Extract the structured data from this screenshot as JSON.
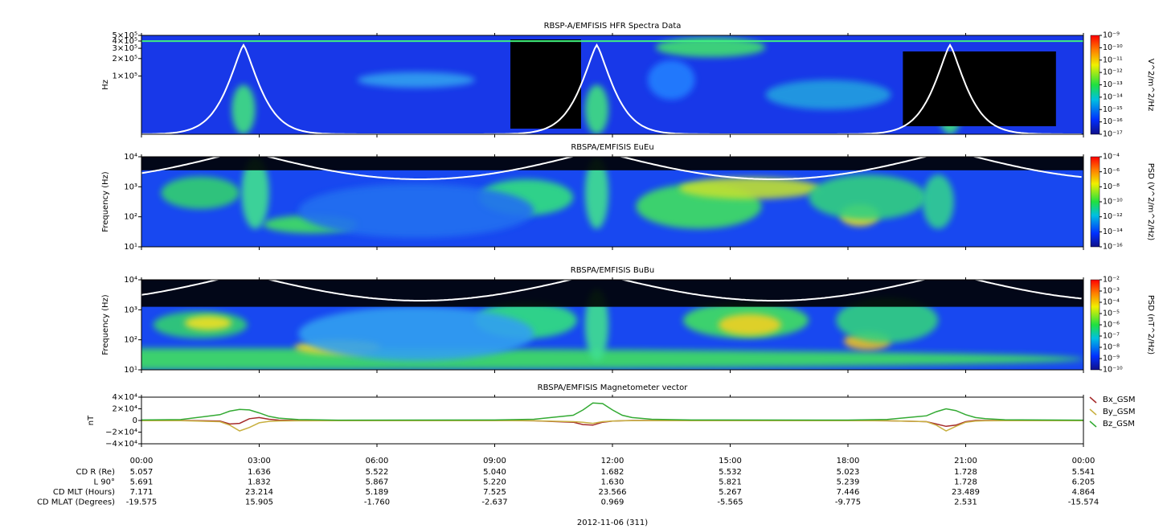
{
  "chart_data": [
    {
      "type": "spectrogram",
      "title": "RBSP-A/EMFISIS  HFR Spectra Data",
      "ylabel": "Hz",
      "ylog": true,
      "ylim": [
        10000,
        500000
      ],
      "yticks": [
        {
          "value": 500000,
          "label": "5×10⁵"
        },
        {
          "value": 400000,
          "label": "4×10⁵"
        },
        {
          "value": 300000,
          "label": "3×10⁵"
        },
        {
          "value": 200000,
          "label": "2×10⁵"
        },
        {
          "value": 100000,
          "label": "1×10⁵"
        }
      ],
      "xlim": [
        0,
        24
      ],
      "colorbar": {
        "label": "V^2/m^2/Hz",
        "log": true,
        "lim": [
          1e-17,
          1e-09
        ],
        "ticks": [
          {
            "value": 1e-09,
            "label": "10⁻⁹"
          },
          {
            "value": 1e-10,
            "label": "10⁻¹⁰"
          },
          {
            "value": 1e-11,
            "label": "10⁻¹¹"
          },
          {
            "value": 1e-12,
            "label": "10⁻¹²"
          },
          {
            "value": 1e-13,
            "label": "10⁻¹³"
          },
          {
            "value": 1e-14,
            "label": "10⁻¹⁴"
          },
          {
            "value": 1e-15,
            "label": "10⁻¹⁵"
          },
          {
            "value": 1e-16,
            "label": "10⁻¹⁶"
          },
          {
            "value": 1e-17,
            "label": "10⁻¹⁷"
          }
        ]
      }
    },
    {
      "type": "spectrogram",
      "title": "RBSPA/EMFISIS  EuEu",
      "ylabel": "Frequency (Hz)",
      "ylog": true,
      "ylim": [
        10,
        10000
      ],
      "yticks": [
        {
          "value": 10,
          "label": "10¹"
        },
        {
          "value": 100,
          "label": "10²"
        },
        {
          "value": 1000,
          "label": "10³"
        },
        {
          "value": 10000,
          "label": "10⁴"
        }
      ],
      "xlim": [
        0,
        24
      ],
      "colorbar": {
        "label": "PSD (V^2/m^2/Hz)",
        "log": true,
        "lim": [
          1e-16,
          0.0001
        ],
        "ticks": [
          {
            "value": 0.0001,
            "label": "10⁻⁴"
          },
          {
            "value": 1e-06,
            "label": "10⁻⁶"
          },
          {
            "value": 1e-08,
            "label": "10⁻⁸"
          },
          {
            "value": 1e-10,
            "label": "10⁻¹⁰"
          },
          {
            "value": 1e-12,
            "label": "10⁻¹²"
          },
          {
            "value": 1e-14,
            "label": "10⁻¹⁴"
          },
          {
            "value": 1e-16,
            "label": "10⁻¹⁶"
          }
        ]
      }
    },
    {
      "type": "spectrogram",
      "title": "RBSPA/EMFISIS  BuBu",
      "ylabel": "Frequency (Hz)",
      "ylog": true,
      "ylim": [
        10,
        10000
      ],
      "yticks": [
        {
          "value": 10,
          "label": "10¹"
        },
        {
          "value": 100,
          "label": "10²"
        },
        {
          "value": 1000,
          "label": "10³"
        },
        {
          "value": 10000,
          "label": "10⁴"
        }
      ],
      "xlim": [
        0,
        24
      ],
      "colorbar": {
        "label": "PSD (nT^2/Hz)",
        "log": true,
        "lim": [
          1e-10,
          0.01
        ],
        "ticks": [
          {
            "value": 0.01,
            "label": "10⁻²"
          },
          {
            "value": 0.001,
            "label": "10⁻³"
          },
          {
            "value": 0.0001,
            "label": "10⁻⁴"
          },
          {
            "value": 1e-05,
            "label": "10⁻⁵"
          },
          {
            "value": 1e-06,
            "label": "10⁻⁶"
          },
          {
            "value": 1e-07,
            "label": "10⁻⁷"
          },
          {
            "value": 1e-08,
            "label": "10⁻⁸"
          },
          {
            "value": 1e-09,
            "label": "10⁻⁹"
          },
          {
            "value": 1e-10,
            "label": "10⁻¹⁰"
          }
        ]
      }
    },
    {
      "type": "line",
      "title": "RBSPA/EMFISIS  Magnetometer vector",
      "ylabel": "nT",
      "ylim": [
        -40000,
        40000
      ],
      "yticks": [
        {
          "value": 40000,
          "label": "4×10⁴"
        },
        {
          "value": 20000,
          "label": "2×10⁴"
        },
        0,
        {
          "value": -20000,
          "label": "−2×10⁴"
        },
        {
          "value": -40000,
          "label": "−4×10⁴"
        }
      ],
      "xlim": [
        0,
        24
      ],
      "xticks": [
        {
          "value": 0,
          "label": "00:00"
        },
        {
          "value": 3,
          "label": "03:00"
        },
        {
          "value": 6,
          "label": "06:00"
        },
        {
          "value": 9,
          "label": "09:00"
        },
        {
          "value": 12,
          "label": "12:00"
        },
        {
          "value": 15,
          "label": "15:00"
        },
        {
          "value": 18,
          "label": "18:00"
        },
        {
          "value": 21,
          "label": "21:00"
        },
        {
          "value": 24,
          "label": "00:00"
        }
      ],
      "legend": "right",
      "x": [
        0,
        1,
        2,
        2.25,
        2.5,
        2.75,
        3,
        3.25,
        3.5,
        4,
        5,
        9,
        10,
        11,
        11.25,
        11.5,
        11.75,
        12,
        12.25,
        12.5,
        13,
        14,
        18,
        19,
        20,
        20.25,
        20.5,
        20.75,
        21,
        21.25,
        21.5,
        22,
        24
      ],
      "series": [
        {
          "name": "Bx_GSM",
          "color": "#a52a2a",
          "values": [
            0,
            0,
            -1000,
            -6000,
            -5000,
            3000,
            5000,
            2000,
            500,
            0,
            0,
            0,
            -500,
            -3000,
            -7000,
            -8000,
            -3000,
            -1000,
            -500,
            0,
            0,
            0,
            0,
            -500,
            -2000,
            -6000,
            -10000,
            -8000,
            -2000,
            0,
            0,
            0,
            0
          ]
        },
        {
          "name": "By_GSM",
          "color": "#c8b040",
          "values": [
            -300,
            -300,
            -2000,
            -8000,
            -18000,
            -12000,
            -4000,
            -1500,
            -800,
            -500,
            -300,
            -300,
            -500,
            -2000,
            -3000,
            -5000,
            -2000,
            -1000,
            -500,
            -400,
            -300,
            -300,
            -300,
            -500,
            -2000,
            -8000,
            -18000,
            -10000,
            -3000,
            -1000,
            -600,
            -400,
            -300
          ]
        },
        {
          "name": "Bz_GSM",
          "color": "#33aa33",
          "values": [
            800,
            1500,
            10000,
            16000,
            19000,
            18000,
            13000,
            7000,
            4000,
            1500,
            600,
            800,
            2000,
            9000,
            18000,
            30000,
            29000,
            18000,
            9000,
            5000,
            2000,
            800,
            700,
            1800,
            8000,
            15000,
            20000,
            17000,
            10000,
            5000,
            3000,
            1200,
            600
          ]
        }
      ]
    }
  ],
  "ephemeris": {
    "rows": [
      {
        "label": "CD R (Re)",
        "values": [
          "5.057",
          "1.636",
          "5.522",
          "5.040",
          "1.682",
          "5.532",
          "5.023",
          "1.728",
          "5.541"
        ]
      },
      {
        "label": "L 90°",
        "values": [
          "5.691",
          "1.832",
          "5.867",
          "5.220",
          "1.630",
          "5.821",
          "5.239",
          "1.728",
          "6.205"
        ]
      },
      {
        "label": "CD MLT (Hours)",
        "values": [
          "7.171",
          "23.214",
          "5.189",
          "7.525",
          "23.566",
          "5.267",
          "7.446",
          "23.489",
          "4.864"
        ]
      },
      {
        "label": "CD MLAT (Degrees)",
        "values": [
          "-19.575",
          "15.905",
          "-1.760",
          "-2.637",
          "0.969",
          "-5.565",
          "-9.775",
          "2.531",
          "-15.574"
        ]
      }
    ],
    "date": "2012-11-06 (311)"
  }
}
